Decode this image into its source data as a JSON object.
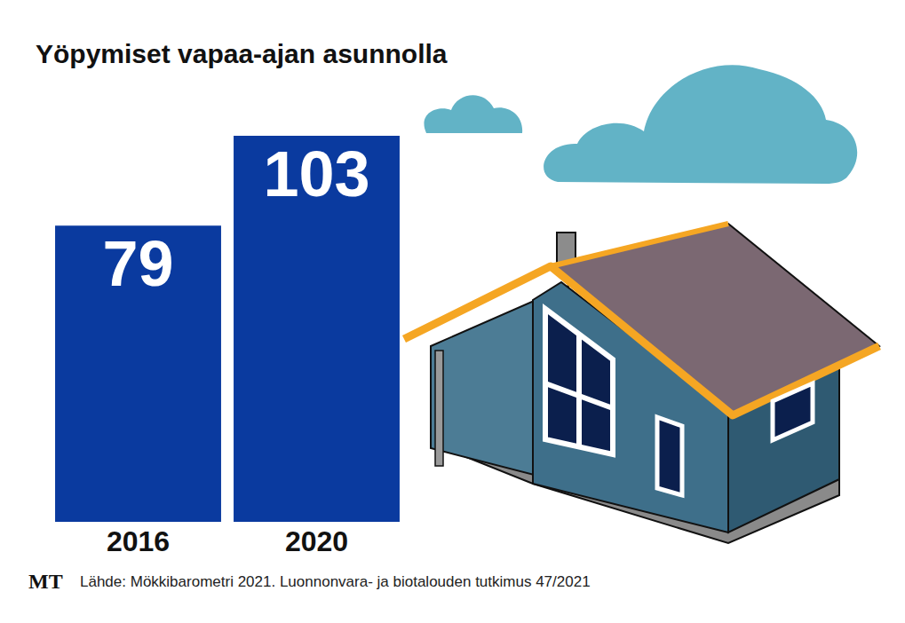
{
  "chart_data": {
    "type": "bar",
    "title": "Yöpymiset vapaa-ajan asunnolla",
    "categories": [
      "2016",
      "2020"
    ],
    "values": [
      79,
      103
    ],
    "color": "#0a3a9f",
    "data_labels": true,
    "tick_labels": "x",
    "grid": false
  },
  "logo": "MT",
  "source": "Lähde: Mökkibarometri 2021. Luonnonvara- ja biotalouden tutkimus 47/2021"
}
